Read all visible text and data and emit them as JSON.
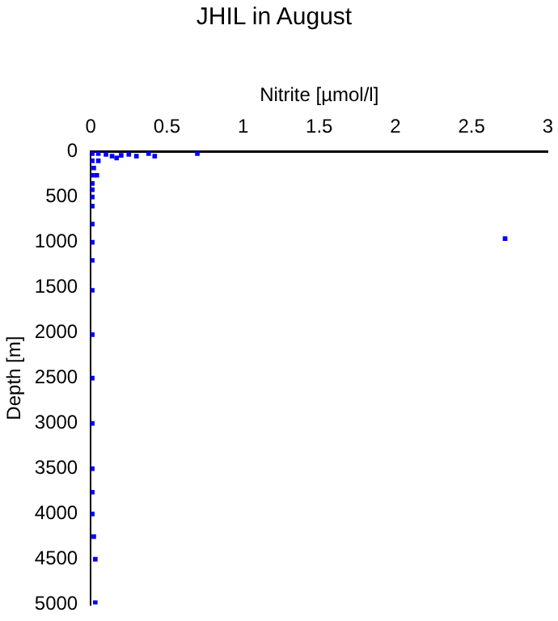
{
  "chart_data": {
    "type": "scatter",
    "title": "JHIL in August",
    "xlabel": "Nitrite [µmol/l]",
    "ylabel": "Depth [m]",
    "series": [
      {
        "color": "#0000ff",
        "x": [
          0.01,
          0.05,
          0.01,
          0.05,
          0.02,
          0.01,
          0.04,
          0.01,
          0.01,
          0.01,
          0.01,
          0.01,
          0.1,
          0.14,
          0.17,
          0.2,
          0.25,
          0.3,
          0.38,
          0.42,
          0.7,
          2.72,
          0.01,
          0.01,
          0.01,
          0.01,
          0.01,
          0.01,
          0.01,
          0.01,
          0.01,
          0.02,
          0.03,
          0.03
        ],
        "values": [
          20,
          20,
          100,
          100,
          180,
          260,
          260,
          350,
          420,
          500,
          600,
          800,
          30,
          50,
          70,
          40,
          30,
          50,
          20,
          50,
          20,
          960,
          1000,
          1200,
          1530,
          2020,
          2500,
          3000,
          3500,
          3760,
          4000,
          4250,
          4500,
          4980
        ]
      }
    ],
    "xlim": [
      0,
      3
    ],
    "xticks": [
      0,
      0.5,
      1,
      1.5,
      2,
      2.5,
      3
    ],
    "ylim": [
      5000,
      0
    ],
    "yticks": [
      0,
      500,
      1000,
      1500,
      2000,
      2500,
      3000,
      3500,
      4000,
      4500,
      5000
    ],
    "grid": false,
    "marker": "square",
    "legend": false
  }
}
